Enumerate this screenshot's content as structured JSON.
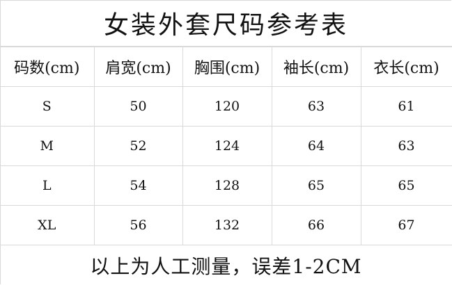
{
  "title": "女装外套尺码参考表",
  "headers": [
    "码数(cm)",
    "肩宽(cm)",
    "胸围(cm)",
    "袖长(cm)",
    "衣长(cm)"
  ],
  "rows": [
    [
      "S",
      "50",
      "120",
      "63",
      "61"
    ],
    [
      "M",
      "52",
      "124",
      "64",
      "63"
    ],
    [
      "L",
      "54",
      "128",
      "65",
      "65"
    ],
    [
      "XL",
      "56",
      "132",
      "66",
      "67"
    ]
  ],
  "footer": "以上为人工测量，误差1-2CM"
}
